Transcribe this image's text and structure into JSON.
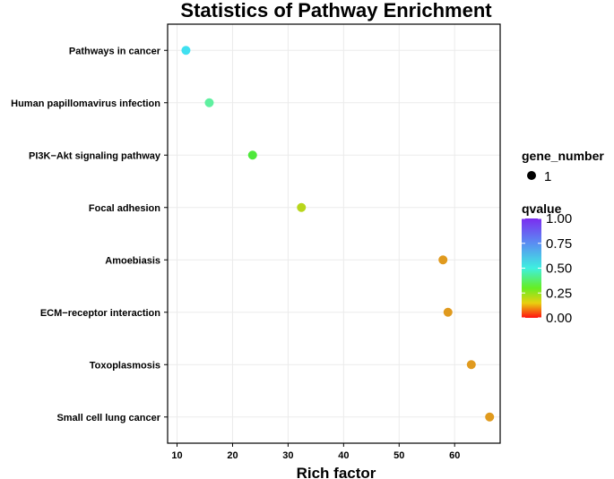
{
  "chart_data": {
    "type": "scatter",
    "title": "Statistics of Pathway Enrichment",
    "xlabel": "Rich factor",
    "ylabel": "",
    "xlim": [
      8.3,
      68.2
    ],
    "xticks": [
      10,
      20,
      30,
      40,
      50,
      60
    ],
    "xtick_labels": [
      "10",
      "20",
      "30",
      "40",
      "50",
      "60"
    ],
    "grid": true,
    "categories": [
      "Pathways in cancer",
      "Human papillomavirus infection",
      "PI3K−Akt signaling pathway",
      "Focal adhesion",
      "Amoebiasis",
      "ECM−receptor interaction",
      "Toxoplasmosis",
      "Small cell lung cancer"
    ],
    "points": [
      {
        "pathway": "Pathways in cancer",
        "rich_factor": 11.6,
        "qvalue": 0.62,
        "gene_number": 1,
        "color": "#40e0f0"
      },
      {
        "pathway": "Human papillomavirus infection",
        "rich_factor": 15.8,
        "qvalue": 0.48,
        "gene_number": 1,
        "color": "#5ff0a0"
      },
      {
        "pathway": "PI3K−Akt signaling pathway",
        "rich_factor": 23.6,
        "qvalue": 0.36,
        "gene_number": 1,
        "color": "#4ee83a"
      },
      {
        "pathway": "Focal adhesion",
        "rich_factor": 32.4,
        "qvalue": 0.26,
        "gene_number": 1,
        "color": "#b8d61c"
      },
      {
        "pathway": "Amoebiasis",
        "rich_factor": 57.9,
        "qvalue": 0.11,
        "gene_number": 1,
        "color": "#e09a1e"
      },
      {
        "pathway": "ECM−receptor interaction",
        "rich_factor": 58.8,
        "qvalue": 0.11,
        "gene_number": 1,
        "color": "#e09a1e"
      },
      {
        "pathway": "Toxoplasmosis",
        "rich_factor": 63.0,
        "qvalue": 0.11,
        "gene_number": 1,
        "color": "#e09a1e"
      },
      {
        "pathway": "Small cell lung cancer",
        "rich_factor": 66.3,
        "qvalue": 0.11,
        "gene_number": 1,
        "color": "#e09a1e"
      }
    ],
    "legend": {
      "position": "right",
      "size_title": "gene_number",
      "size_labels": [
        "1"
      ],
      "color_title": "qvalue",
      "color_ticks": [
        "1.00",
        "0.75",
        "0.50",
        "0.25",
        "0.00"
      ],
      "color_tick_values": [
        1.0,
        0.75,
        0.5,
        0.25,
        0.0
      ],
      "gradient_stops": [
        {
          "value": 1.0,
          "color": "#7b2cf0"
        },
        {
          "value": 0.75,
          "color": "#5a8ef2"
        },
        {
          "value": 0.5,
          "color": "#3ef0e0"
        },
        {
          "value": 0.3,
          "color": "#66ee22"
        },
        {
          "value": 0.15,
          "color": "#e8d010"
        },
        {
          "value": 0.0,
          "color": "#ff1010"
        }
      ]
    }
  }
}
